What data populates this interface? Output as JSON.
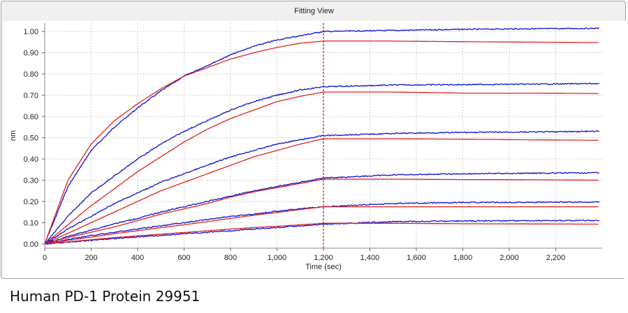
{
  "window": {
    "title": "Fitting View"
  },
  "caption": "Human PD-1 Protein 29951",
  "chart_data": {
    "type": "line",
    "title": "Fitting View",
    "xlabel": "Time (sec)",
    "ylabel": "nm",
    "xlim": [
      0,
      2400
    ],
    "ylim": [
      -0.02,
      1.04
    ],
    "x_ticks": [
      0,
      200,
      400,
      600,
      800,
      1000,
      1200,
      1400,
      1600,
      1800,
      2000,
      2200
    ],
    "x_tick_labels": [
      "0",
      "200",
      "400",
      "600",
      "800",
      "1,000",
      "1,200",
      "1,400",
      "1,600",
      "1,800",
      "2,000",
      "2,200"
    ],
    "y_ticks": [
      0,
      0.1,
      0.2,
      0.3,
      0.4,
      0.5,
      0.6,
      0.7,
      0.8,
      0.9,
      1.0
    ],
    "y_tick_labels": [
      "0.00",
      "0.10",
      "0.20",
      "0.30",
      "0.40",
      "0.50",
      "0.60",
      "0.70",
      "0.80",
      "0.90",
      "1.00"
    ],
    "grid": true,
    "vline_x": 1200,
    "colors": {
      "data": "#1010d0",
      "fit": "#e02020",
      "vline": "#d01010"
    },
    "series": [
      {
        "kind": "data",
        "points": [
          [
            0,
            0
          ],
          [
            100,
            0.27
          ],
          [
            200,
            0.44
          ],
          [
            300,
            0.55
          ],
          [
            400,
            0.64
          ],
          [
            500,
            0.72
          ],
          [
            600,
            0.79
          ],
          [
            700,
            0.84
          ],
          [
            800,
            0.89
          ],
          [
            900,
            0.93
          ],
          [
            1000,
            0.96
          ],
          [
            1100,
            0.98
          ],
          [
            1200,
            1.0
          ],
          [
            1500,
            1.005
          ],
          [
            1800,
            1.01
          ],
          [
            2100,
            1.013
          ],
          [
            2390,
            1.015
          ]
        ]
      },
      {
        "kind": "fit",
        "points": [
          [
            0,
            0
          ],
          [
            100,
            0.3
          ],
          [
            200,
            0.47
          ],
          [
            300,
            0.58
          ],
          [
            400,
            0.66
          ],
          [
            500,
            0.73
          ],
          [
            600,
            0.79
          ],
          [
            700,
            0.83
          ],
          [
            800,
            0.87
          ],
          [
            900,
            0.9
          ],
          [
            1000,
            0.925
          ],
          [
            1100,
            0.945
          ],
          [
            1200,
            0.955
          ],
          [
            1500,
            0.955
          ],
          [
            1800,
            0.952
          ],
          [
            2100,
            0.95
          ],
          [
            2390,
            0.948
          ]
        ]
      },
      {
        "kind": "data",
        "points": [
          [
            0,
            0
          ],
          [
            100,
            0.13
          ],
          [
            200,
            0.24
          ],
          [
            300,
            0.32
          ],
          [
            400,
            0.4
          ],
          [
            500,
            0.47
          ],
          [
            600,
            0.53
          ],
          [
            700,
            0.58
          ],
          [
            800,
            0.63
          ],
          [
            900,
            0.67
          ],
          [
            1000,
            0.7
          ],
          [
            1100,
            0.725
          ],
          [
            1200,
            0.74
          ],
          [
            1500,
            0.748
          ],
          [
            1800,
            0.75
          ],
          [
            2100,
            0.752
          ],
          [
            2390,
            0.755
          ]
        ]
      },
      {
        "kind": "fit",
        "points": [
          [
            0,
            0
          ],
          [
            100,
            0.09
          ],
          [
            200,
            0.18
          ],
          [
            300,
            0.26
          ],
          [
            400,
            0.34
          ],
          [
            500,
            0.41
          ],
          [
            600,
            0.48
          ],
          [
            700,
            0.54
          ],
          [
            800,
            0.59
          ],
          [
            900,
            0.63
          ],
          [
            1000,
            0.67
          ],
          [
            1100,
            0.695
          ],
          [
            1200,
            0.715
          ],
          [
            1500,
            0.715
          ],
          [
            1800,
            0.71
          ],
          [
            2100,
            0.71
          ],
          [
            2390,
            0.708
          ]
        ]
      },
      {
        "kind": "data",
        "points": [
          [
            0,
            0
          ],
          [
            100,
            0.07
          ],
          [
            200,
            0.13
          ],
          [
            300,
            0.19
          ],
          [
            400,
            0.24
          ],
          [
            500,
            0.29
          ],
          [
            600,
            0.33
          ],
          [
            700,
            0.37
          ],
          [
            800,
            0.41
          ],
          [
            900,
            0.44
          ],
          [
            1000,
            0.47
          ],
          [
            1100,
            0.49
          ],
          [
            1200,
            0.51
          ],
          [
            1500,
            0.52
          ],
          [
            1800,
            0.525
          ],
          [
            2100,
            0.527
          ],
          [
            2390,
            0.53
          ]
        ]
      },
      {
        "kind": "fit",
        "points": [
          [
            0,
            0
          ],
          [
            100,
            0.05
          ],
          [
            200,
            0.1
          ],
          [
            300,
            0.15
          ],
          [
            400,
            0.2
          ],
          [
            500,
            0.25
          ],
          [
            600,
            0.29
          ],
          [
            700,
            0.33
          ],
          [
            800,
            0.37
          ],
          [
            900,
            0.41
          ],
          [
            1000,
            0.44
          ],
          [
            1100,
            0.47
          ],
          [
            1200,
            0.495
          ],
          [
            1500,
            0.495
          ],
          [
            1800,
            0.493
          ],
          [
            2100,
            0.49
          ],
          [
            2390,
            0.488
          ]
        ]
      },
      {
        "kind": "data",
        "points": [
          [
            0,
            0
          ],
          [
            100,
            0.035
          ],
          [
            200,
            0.065
          ],
          [
            300,
            0.095
          ],
          [
            400,
            0.12
          ],
          [
            500,
            0.15
          ],
          [
            600,
            0.175
          ],
          [
            700,
            0.2
          ],
          [
            800,
            0.225
          ],
          [
            900,
            0.25
          ],
          [
            1000,
            0.27
          ],
          [
            1100,
            0.29
          ],
          [
            1200,
            0.31
          ],
          [
            1500,
            0.325
          ],
          [
            1800,
            0.33
          ],
          [
            2100,
            0.333
          ],
          [
            2390,
            0.335
          ]
        ]
      },
      {
        "kind": "fit",
        "points": [
          [
            0,
            0
          ],
          [
            100,
            0.03
          ],
          [
            200,
            0.055
          ],
          [
            300,
            0.08
          ],
          [
            400,
            0.11
          ],
          [
            500,
            0.14
          ],
          [
            600,
            0.165
          ],
          [
            700,
            0.19
          ],
          [
            800,
            0.22
          ],
          [
            900,
            0.245
          ],
          [
            1000,
            0.265
          ],
          [
            1100,
            0.285
          ],
          [
            1200,
            0.305
          ],
          [
            1500,
            0.305
          ],
          [
            1800,
            0.303
          ],
          [
            2100,
            0.302
          ],
          [
            2390,
            0.3
          ]
        ]
      },
      {
        "kind": "data",
        "points": [
          [
            0,
            0
          ],
          [
            100,
            0.02
          ],
          [
            200,
            0.04
          ],
          [
            300,
            0.055
          ],
          [
            400,
            0.07
          ],
          [
            500,
            0.085
          ],
          [
            600,
            0.1
          ],
          [
            700,
            0.115
          ],
          [
            800,
            0.13
          ],
          [
            900,
            0.14
          ],
          [
            1000,
            0.155
          ],
          [
            1100,
            0.165
          ],
          [
            1200,
            0.175
          ],
          [
            1500,
            0.19
          ],
          [
            1800,
            0.195
          ],
          [
            2100,
            0.196
          ],
          [
            2390,
            0.197
          ]
        ]
      },
      {
        "kind": "fit",
        "points": [
          [
            0,
            0
          ],
          [
            100,
            0.017
          ],
          [
            200,
            0.032
          ],
          [
            300,
            0.048
          ],
          [
            400,
            0.062
          ],
          [
            500,
            0.077
          ],
          [
            600,
            0.09
          ],
          [
            700,
            0.105
          ],
          [
            800,
            0.12
          ],
          [
            900,
            0.135
          ],
          [
            1000,
            0.148
          ],
          [
            1100,
            0.162
          ],
          [
            1200,
            0.175
          ],
          [
            1500,
            0.175
          ],
          [
            1800,
            0.175
          ],
          [
            2100,
            0.175
          ],
          [
            2390,
            0.175
          ]
        ]
      },
      {
        "kind": "data",
        "points": [
          [
            0,
            0
          ],
          [
            100,
            0.008
          ],
          [
            200,
            0.017
          ],
          [
            300,
            0.025
          ],
          [
            400,
            0.033
          ],
          [
            500,
            0.04
          ],
          [
            600,
            0.048
          ],
          [
            700,
            0.055
          ],
          [
            800,
            0.062
          ],
          [
            900,
            0.07
          ],
          [
            1000,
            0.077
          ],
          [
            1100,
            0.085
          ],
          [
            1200,
            0.092
          ],
          [
            1500,
            0.105
          ],
          [
            1800,
            0.108
          ],
          [
            2100,
            0.11
          ],
          [
            2390,
            0.11
          ]
        ]
      },
      {
        "kind": "fit",
        "points": [
          [
            0,
            0
          ],
          [
            100,
            0.01
          ],
          [
            200,
            0.02
          ],
          [
            300,
            0.03
          ],
          [
            400,
            0.038
          ],
          [
            500,
            0.046
          ],
          [
            600,
            0.054
          ],
          [
            700,
            0.062
          ],
          [
            800,
            0.07
          ],
          [
            900,
            0.077
          ],
          [
            1000,
            0.083
          ],
          [
            1100,
            0.09
          ],
          [
            1200,
            0.097
          ],
          [
            1500,
            0.097
          ],
          [
            1800,
            0.095
          ],
          [
            2100,
            0.094
          ],
          [
            2390,
            0.093
          ]
        ]
      }
    ]
  }
}
